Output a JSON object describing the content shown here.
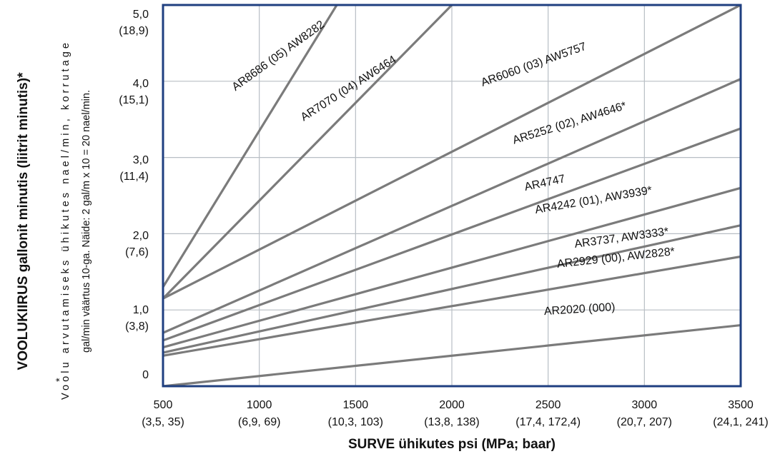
{
  "chart_data": {
    "type": "line",
    "xlabel": "SURVE ühikutes psi (MPa; baar)",
    "ylabel": "VOOLUKIIRUS gallonit minutis (liitrit minutis)*",
    "note": {
      "marker": "*",
      "line1": "Voolu arvutamiseks ühikutes nael/min, korrutage",
      "line2": "gal/min väärtus 10-ga. Näide: 2 gal/m x 10 = 20 nael/min."
    },
    "xlim": [
      500,
      3500
    ],
    "ylim": [
      0,
      5.0
    ],
    "x_ticks": [
      {
        "value": 500,
        "label": "500",
        "sub": "(3,5, 35)"
      },
      {
        "value": 1000,
        "label": "1000",
        "sub": "(6,9, 69)"
      },
      {
        "value": 1500,
        "label": "1500",
        "sub": "(10,3, 103)"
      },
      {
        "value": 2000,
        "label": "2000",
        "sub": "(13,8, 138)"
      },
      {
        "value": 2500,
        "label": "2500",
        "sub": "(17,4, 172,4)"
      },
      {
        "value": 3000,
        "label": "3000",
        "sub": "(20,7, 207)"
      },
      {
        "value": 3500,
        "label": "3500",
        "sub": "(24,1, 241)"
      }
    ],
    "y_ticks": [
      {
        "value": 0,
        "label": "0",
        "sub": ""
      },
      {
        "value": 1.0,
        "label": "1,0",
        "sub": "(3,8)"
      },
      {
        "value": 2.0,
        "label": "2,0",
        "sub": "(7,6)"
      },
      {
        "value": 3.0,
        "label": "3,0",
        "sub": "(11,4)"
      },
      {
        "value": 4.0,
        "label": "4,0",
        "sub": "(15,1)"
      },
      {
        "value": 5.0,
        "label": "5,0",
        "sub": "(18,9)"
      }
    ],
    "grid": true,
    "colors": {
      "series": "#7b7b7b",
      "frame": "#1f3f80",
      "grid": "#b8bec4"
    },
    "series": [
      {
        "name": "AR8686 (05) AW8282",
        "x": [
          500,
          1500
        ],
        "y": [
          1.3,
          5.4
        ]
      },
      {
        "name": "AR7070 (04) AW6464",
        "x": [
          500,
          2000
        ],
        "y": [
          1.15,
          5.0
        ]
      },
      {
        "name": "AR6060 (03) AW5757",
        "x": [
          500,
          3500
        ],
        "y": [
          1.15,
          5.0
        ]
      },
      {
        "name": "AR5252 (02), AW4646*",
        "x": [
          500,
          3500
        ],
        "y": [
          0.7,
          4.03
        ]
      },
      {
        "name": "AR4747",
        "x": [
          500,
          3500
        ],
        "y": [
          0.6,
          3.38
        ]
      },
      {
        "name": "AR4242 (01), AW3939*",
        "x": [
          500,
          3500
        ],
        "y": [
          0.51,
          2.6
        ]
      },
      {
        "name": "AR3737, AW3333*",
        "x": [
          500,
          3500
        ],
        "y": [
          0.44,
          2.11
        ]
      },
      {
        "name": "AR2929 (00), AW2828*",
        "x": [
          500,
          3500
        ],
        "y": [
          0.4,
          1.7
        ]
      },
      {
        "name": "AR2020 (000)",
        "x": [
          500,
          3500
        ],
        "y": [
          0.0,
          0.8
        ]
      }
    ]
  }
}
